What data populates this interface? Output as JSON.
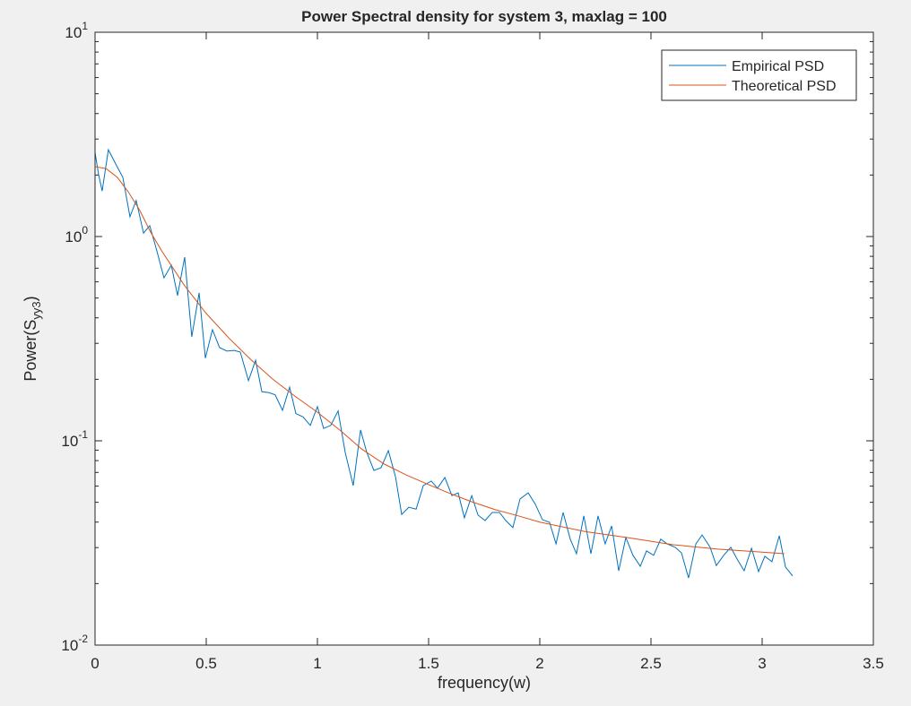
{
  "chart_data": {
    "type": "line",
    "title": "Power Spectral density for system 3, maxlag = 100",
    "xlabel": "frequency(w)",
    "ylabel": {
      "text": "Power(S",
      "sub": "yy3",
      "after": ")"
    },
    "xlim": [
      0,
      3.5
    ],
    "xticks": [
      0,
      0.5,
      1,
      1.5,
      2,
      2.5,
      3,
      3.5
    ],
    "ylim": [
      0.01,
      10
    ],
    "yscale": "log",
    "yticks": [
      {
        "value": 0.01,
        "label": "10",
        "exponent": "-2"
      },
      {
        "value": 0.1,
        "label": "10",
        "exponent": "-1"
      },
      {
        "value": 1,
        "label": "10",
        "exponent": "0"
      },
      {
        "value": 10,
        "label": "10",
        "exponent": "1"
      }
    ],
    "legend": "northeast",
    "series": [
      {
        "name": "Empirical PSD",
        "color": "#0072bd",
        "x": [
          0,
          0.016,
          0.032,
          0.06,
          0.097,
          0.125,
          0.157,
          0.185,
          0.218,
          0.246,
          0.278,
          0.31,
          0.343,
          0.371,
          0.403,
          0.435,
          0.468,
          0.496,
          0.528,
          0.56,
          0.593,
          0.625,
          0.653,
          0.69,
          0.722,
          0.75,
          0.782,
          0.81,
          0.843,
          0.875,
          0.903,
          0.935,
          0.968,
          1.0,
          1.028,
          1.06,
          1.093,
          1.125,
          1.161,
          1.194,
          1.222,
          1.254,
          1.286,
          1.319,
          1.351,
          1.379,
          1.411,
          1.444,
          1.476,
          1.512,
          1.54,
          1.573,
          1.605,
          1.633,
          1.661,
          1.694,
          1.722,
          1.754,
          1.786,
          1.819,
          1.847,
          1.879,
          1.911,
          1.948,
          1.98,
          2.012,
          2.044,
          2.073,
          2.105,
          2.137,
          2.165,
          2.198,
          2.23,
          2.262,
          2.294,
          2.323,
          2.355,
          2.387,
          2.419,
          2.452,
          2.48,
          2.512,
          2.544,
          2.573,
          2.609,
          2.637,
          2.669,
          2.702,
          2.73,
          2.766,
          2.794,
          2.827,
          2.859,
          2.887,
          2.919,
          2.952,
          2.984,
          3.012,
          3.044,
          3.077,
          3.105,
          3.137
        ],
        "values": [
          2.58,
          2.01,
          1.67,
          2.66,
          2.22,
          1.95,
          1.25,
          1.5,
          1.04,
          1.13,
          0.851,
          0.628,
          0.724,
          0.514,
          0.792,
          0.323,
          0.53,
          0.254,
          0.35,
          0.286,
          0.275,
          0.277,
          0.272,
          0.197,
          0.248,
          0.174,
          0.172,
          0.168,
          0.141,
          0.183,
          0.136,
          0.131,
          0.119,
          0.147,
          0.115,
          0.119,
          0.14,
          0.0877,
          0.0604,
          0.113,
          0.0877,
          0.0716,
          0.0738,
          0.0895,
          0.0668,
          0.0436,
          0.0473,
          0.0463,
          0.0604,
          0.0635,
          0.0586,
          0.0661,
          0.0539,
          0.0556,
          0.042,
          0.0539,
          0.0433,
          0.0407,
          0.0446,
          0.0446,
          0.0407,
          0.0376,
          0.0519,
          0.0556,
          0.0489,
          0.0411,
          0.0399,
          0.0313,
          0.0446,
          0.033,
          0.028,
          0.0429,
          0.028,
          0.0429,
          0.0313,
          0.0383,
          0.0231,
          0.0336,
          0.0275,
          0.0243,
          0.0289,
          0.0275,
          0.033,
          0.0313,
          0.0301,
          0.0283,
          0.0213,
          0.0313,
          0.0346,
          0.0301,
          0.0245,
          0.0275,
          0.0301,
          0.0264,
          0.0231,
          0.0298,
          0.0229,
          0.0272,
          0.0256,
          0.0343,
          0.0241,
          0.0218
        ]
      },
      {
        "name": "Theoretical PSD",
        "color": "#d95319",
        "x": [
          0,
          0.05,
          0.1,
          0.15,
          0.2,
          0.25,
          0.3,
          0.4,
          0.5,
          0.6,
          0.7,
          0.8,
          0.9,
          1.0,
          1.1,
          1.2,
          1.3,
          1.4,
          1.5,
          1.6,
          1.7,
          1.8,
          1.9,
          2.0,
          2.2,
          2.4,
          2.6,
          2.8,
          3.0,
          3.1
        ],
        "values": [
          2.2,
          2.15,
          1.95,
          1.65,
          1.35,
          1.05,
          0.85,
          0.58,
          0.42,
          0.32,
          0.25,
          0.2,
          0.165,
          0.138,
          0.113,
          0.091,
          0.077,
          0.068,
          0.061,
          0.055,
          0.05,
          0.046,
          0.043,
          0.04,
          0.036,
          0.0335,
          0.031,
          0.0295,
          0.0285,
          0.028
        ]
      }
    ]
  }
}
